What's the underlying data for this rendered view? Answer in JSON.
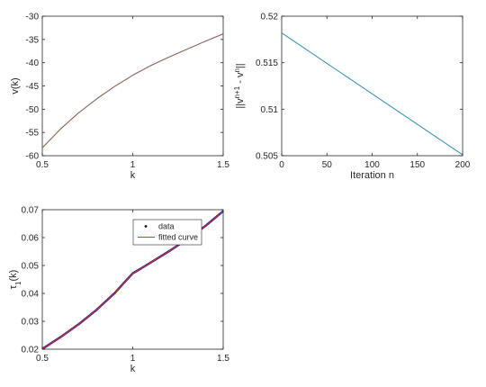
{
  "chart_data": [
    {
      "type": "line",
      "xlabel": "k",
      "ylabel": "v(k)",
      "xlim": [
        0.5,
        1.5
      ],
      "ylim": [
        -60,
        -30
      ],
      "xticks": [
        "0.5",
        "1",
        "1.5"
      ],
      "yticks": [
        "-30",
        "-35",
        "-40",
        "-45",
        "-50",
        "-55",
        "-60"
      ],
      "grid": false,
      "series": [
        {
          "color": "#d95319",
          "x": [
            0.5,
            0.6,
            0.7,
            0.8,
            0.9,
            1.0,
            1.1,
            1.2,
            1.3,
            1.4,
            1.5
          ],
          "y": [
            -58.3,
            -54.3,
            -50.8,
            -47.8,
            -45.1,
            -42.7,
            -40.6,
            -38.8,
            -37.1,
            -35.4,
            -33.8
          ]
        },
        {
          "color": "#7e6b6b",
          "x": [
            0.5,
            0.6,
            0.7,
            0.8,
            0.9,
            1.0,
            1.1,
            1.2,
            1.3,
            1.4,
            1.5
          ],
          "y": [
            -58.3,
            -54.3,
            -50.8,
            -47.8,
            -45.1,
            -42.7,
            -40.6,
            -38.8,
            -37.1,
            -35.4,
            -33.8
          ]
        }
      ]
    },
    {
      "type": "line",
      "xlabel": "Iteration n",
      "ylabel": "||v^{n+1} - v^{n}||",
      "xlim": [
        0,
        200
      ],
      "ylim": [
        0.505,
        0.52
      ],
      "xticks": [
        "0",
        "50",
        "100",
        "150",
        "200"
      ],
      "yticks": [
        "0.52",
        "0.515",
        "0.51",
        "0.505"
      ],
      "grid": false,
      "series": [
        {
          "color": "#2f8db5",
          "x": [
            0,
            200
          ],
          "y": [
            0.5182,
            0.5051
          ]
        }
      ]
    },
    {
      "type": "line",
      "xlabel": "k",
      "ylabel": "τ_1(k)",
      "xlim": [
        0.5,
        1.5
      ],
      "ylim": [
        0.02,
        0.07
      ],
      "xticks": [
        "0.5",
        "1",
        "1.5"
      ],
      "yticks": [
        "0.07",
        "0.06",
        "0.05",
        "0.04",
        "0.03",
        "0.02"
      ],
      "grid": false,
      "legend": {
        "placement": "top-right",
        "entries": [
          "data",
          "fitted curve"
        ]
      },
      "series": [
        {
          "name": "data",
          "color": "#1f1f8f",
          "x": [
            0.5,
            0.6,
            0.7,
            0.8,
            0.9,
            0.95,
            0.98,
            1.0,
            1.05,
            1.1,
            1.2,
            1.3,
            1.4,
            1.5
          ],
          "y": [
            0.0201,
            0.0243,
            0.0289,
            0.0341,
            0.0401,
            0.0437,
            0.0458,
            0.0472,
            0.0491,
            0.0511,
            0.0551,
            0.0594,
            0.0641,
            0.0695
          ]
        },
        {
          "name": "fitted curve",
          "color": "#e0302a",
          "x": [
            0.5,
            0.6,
            0.7,
            0.8,
            0.9,
            0.95,
            0.98,
            1.0,
            1.05,
            1.1,
            1.2,
            1.3,
            1.4,
            1.5
          ],
          "y": [
            0.0201,
            0.0243,
            0.0289,
            0.0341,
            0.0401,
            0.0437,
            0.0458,
            0.0472,
            0.0491,
            0.0511,
            0.0551,
            0.0594,
            0.0641,
            0.0695
          ]
        }
      ]
    }
  ]
}
